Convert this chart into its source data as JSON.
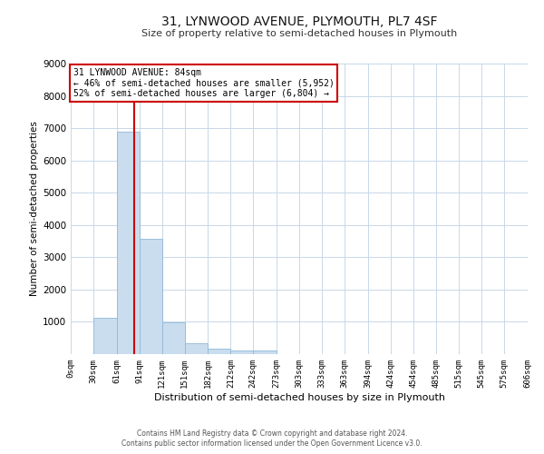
{
  "title": "31, LYNWOOD AVENUE, PLYMOUTH, PL7 4SF",
  "subtitle": "Size of property relative to semi-detached houses in Plymouth",
  "xlabel": "Distribution of semi-detached houses by size in Plymouth",
  "ylabel": "Number of semi-detached properties",
  "bar_edges": [
    0,
    30,
    61,
    91,
    121,
    151,
    182,
    212,
    242,
    273,
    303,
    333,
    363,
    394,
    424,
    454,
    485,
    515,
    545,
    575,
    606
  ],
  "bar_heights": [
    0,
    1130,
    6880,
    3560,
    975,
    340,
    155,
    115,
    100,
    0,
    0,
    0,
    0,
    0,
    0,
    0,
    0,
    0,
    0,
    0
  ],
  "bar_color": "#c9ddef",
  "bar_edgecolor": "#90b8d8",
  "property_line_x": 84,
  "property_line_color": "#cc0000",
  "ylim": [
    0,
    9000
  ],
  "yticks": [
    0,
    1000,
    2000,
    3000,
    4000,
    5000,
    6000,
    7000,
    8000,
    9000
  ],
  "xtick_labels": [
    "0sqm",
    "30sqm",
    "61sqm",
    "91sqm",
    "121sqm",
    "151sqm",
    "182sqm",
    "212sqm",
    "242sqm",
    "273sqm",
    "303sqm",
    "333sqm",
    "363sqm",
    "394sqm",
    "424sqm",
    "454sqm",
    "485sqm",
    "515sqm",
    "545sqm",
    "575sqm",
    "606sqm"
  ],
  "annotation_box_line1": "31 LYNWOOD AVENUE: 84sqm",
  "annotation_box_line2": "← 46% of semi-detached houses are smaller (5,952)",
  "annotation_box_line3": "52% of semi-detached houses are larger (6,804) →",
  "annotation_box_edgecolor": "#cc0000",
  "footer_line1": "Contains HM Land Registry data © Crown copyright and database right 2024.",
  "footer_line2": "Contains public sector information licensed under the Open Government Licence v3.0.",
  "background_color": "#ffffff",
  "grid_color": "#c8d8e8"
}
